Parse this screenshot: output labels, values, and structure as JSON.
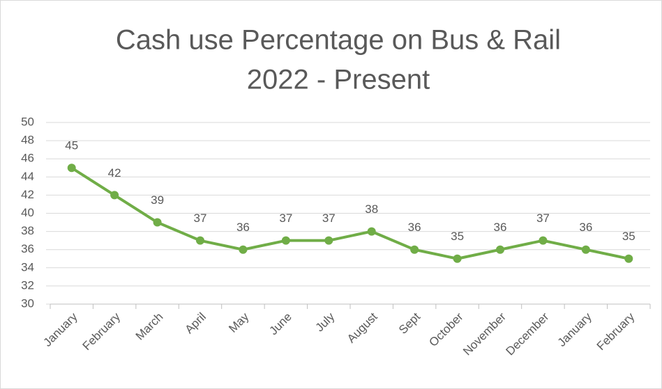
{
  "chart_data": {
    "type": "line",
    "title": [
      "Cash use Percentage on Bus & Rail",
      "2022 - Present"
    ],
    "categories": [
      "January",
      "February",
      "March",
      "April",
      "May",
      "June",
      "July",
      "August",
      "Sept",
      "October",
      "November",
      "December",
      "January",
      "February"
    ],
    "values": [
      45,
      42,
      39,
      37,
      36,
      37,
      37,
      38,
      36,
      35,
      36,
      37,
      36,
      35
    ],
    "color": "#70ad47",
    "ylim": [
      30,
      50
    ],
    "yticks": [
      30,
      32,
      34,
      36,
      38,
      40,
      42,
      44,
      46,
      48,
      50
    ],
    "grid": true
  }
}
